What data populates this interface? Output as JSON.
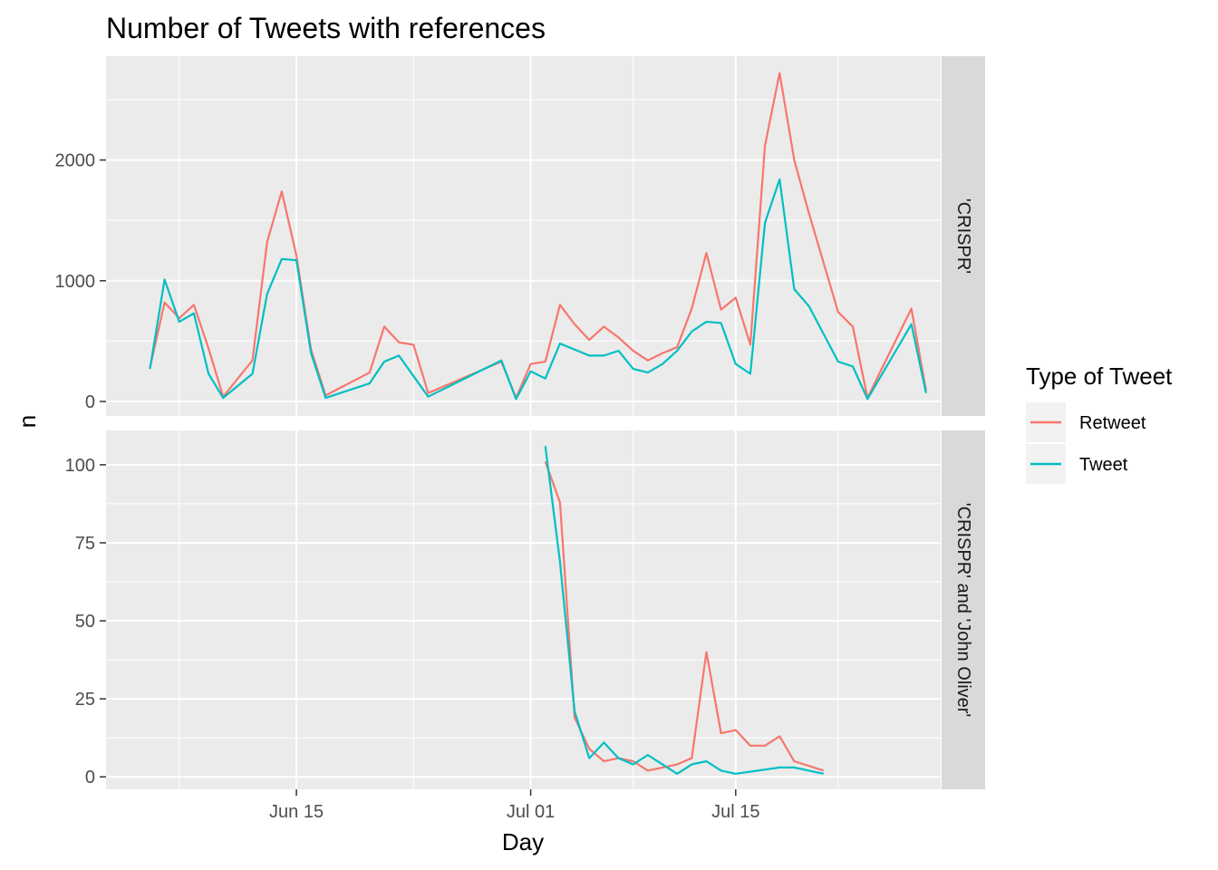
{
  "chart_data": {
    "type": "line",
    "title": "Number of Tweets with references",
    "xlabel": "Day",
    "ylabel": "n",
    "x_ticks": [
      {
        "date": "2015-06-15",
        "label": "Jun 15"
      },
      {
        "date": "2015-07-01",
        "label": "Jul 01"
      },
      {
        "date": "2015-07-15",
        "label": "Jul 15"
      }
    ],
    "xlim": [
      "2015-06-02",
      "2015-07-29"
    ],
    "grid": true,
    "legend": {
      "title": "Type of Tweet",
      "position": "right",
      "entries": [
        {
          "name": "Retweet",
          "color": "#F8766D"
        },
        {
          "name": "Tweet",
          "color": "#00BFC4"
        }
      ]
    },
    "panels": [
      {
        "strip": "'CRISPR'",
        "ylim": [
          -120,
          2860
        ],
        "y_ticks": [
          0,
          1000,
          2000
        ],
        "series": [
          {
            "name": "Retweet",
            "color": "#F8766D",
            "points": [
              [
                "2015-06-05",
                280
              ],
              [
                "2015-06-06",
                820
              ],
              [
                "2015-06-07",
                690
              ],
              [
                "2015-06-08",
                800
              ],
              [
                "2015-06-09",
                440
              ],
              [
                "2015-06-10",
                40
              ],
              [
                "2015-06-12",
                340
              ],
              [
                "2015-06-13",
                1320
              ],
              [
                "2015-06-14",
                1740
              ],
              [
                "2015-06-15",
                1210
              ],
              [
                "2015-06-16",
                430
              ],
              [
                "2015-06-17",
                50
              ],
              [
                "2015-06-20",
                240
              ],
              [
                "2015-06-21",
                620
              ],
              [
                "2015-06-22",
                490
              ],
              [
                "2015-06-23",
                470
              ],
              [
                "2015-06-24",
                70
              ],
              [
                "2015-06-29",
                330
              ],
              [
                "2015-06-30",
                30
              ],
              [
                "2015-07-01",
                310
              ],
              [
                "2015-07-02",
                330
              ],
              [
                "2015-07-03",
                800
              ],
              [
                "2015-07-04",
                640
              ],
              [
                "2015-07-05",
                510
              ],
              [
                "2015-07-06",
                620
              ],
              [
                "2015-07-07",
                530
              ],
              [
                "2015-07-08",
                420
              ],
              [
                "2015-07-09",
                340
              ],
              [
                "2015-07-10",
                400
              ],
              [
                "2015-07-11",
                450
              ],
              [
                "2015-07-12",
                770
              ],
              [
                "2015-07-13",
                1230
              ],
              [
                "2015-07-14",
                760
              ],
              [
                "2015-07-15",
                860
              ],
              [
                "2015-07-16",
                470
              ],
              [
                "2015-07-17",
                2120
              ],
              [
                "2015-07-18",
                2720
              ],
              [
                "2015-07-19",
                2000
              ],
              [
                "2015-07-20",
                1560
              ],
              [
                "2015-07-22",
                740
              ],
              [
                "2015-07-23",
                620
              ],
              [
                "2015-07-24",
                30
              ],
              [
                "2015-07-27",
                770
              ],
              [
                "2015-07-28",
                90
              ]
            ]
          },
          {
            "name": "Tweet",
            "color": "#00BFC4",
            "points": [
              [
                "2015-06-05",
                270
              ],
              [
                "2015-06-06",
                1010
              ],
              [
                "2015-06-07",
                660
              ],
              [
                "2015-06-08",
                730
              ],
              [
                "2015-06-09",
                230
              ],
              [
                "2015-06-10",
                30
              ],
              [
                "2015-06-12",
                230
              ],
              [
                "2015-06-13",
                890
              ],
              [
                "2015-06-14",
                1180
              ],
              [
                "2015-06-15",
                1170
              ],
              [
                "2015-06-16",
                400
              ],
              [
                "2015-06-17",
                30
              ],
              [
                "2015-06-20",
                150
              ],
              [
                "2015-06-21",
                330
              ],
              [
                "2015-06-22",
                380
              ],
              [
                "2015-06-24",
                40
              ],
              [
                "2015-06-29",
                340
              ],
              [
                "2015-06-30",
                20
              ],
              [
                "2015-07-01",
                250
              ],
              [
                "2015-07-02",
                190
              ],
              [
                "2015-07-03",
                480
              ],
              [
                "2015-07-04",
                430
              ],
              [
                "2015-07-05",
                380
              ],
              [
                "2015-07-06",
                380
              ],
              [
                "2015-07-07",
                420
              ],
              [
                "2015-07-08",
                270
              ],
              [
                "2015-07-09",
                240
              ],
              [
                "2015-07-10",
                310
              ],
              [
                "2015-07-11",
                420
              ],
              [
                "2015-07-12",
                580
              ],
              [
                "2015-07-13",
                660
              ],
              [
                "2015-07-14",
                650
              ],
              [
                "2015-07-15",
                310
              ],
              [
                "2015-07-16",
                230
              ],
              [
                "2015-07-17",
                1480
              ],
              [
                "2015-07-18",
                1840
              ],
              [
                "2015-07-19",
                930
              ],
              [
                "2015-07-20",
                790
              ],
              [
                "2015-07-22",
                330
              ],
              [
                "2015-07-23",
                290
              ],
              [
                "2015-07-24",
                20
              ],
              [
                "2015-07-27",
                640
              ],
              [
                "2015-07-28",
                70
              ]
            ]
          }
        ]
      },
      {
        "strip": "'CRISPR' and 'John Oliver'",
        "ylim": [
          -4,
          111
        ],
        "y_ticks": [
          0,
          25,
          50,
          75,
          100
        ],
        "series": [
          {
            "name": "Retweet",
            "color": "#F8766D",
            "points": [
              [
                "2015-07-02",
                101
              ],
              [
                "2015-07-03",
                88
              ],
              [
                "2015-07-04",
                19
              ],
              [
                "2015-07-05",
                9
              ],
              [
                "2015-07-06",
                5
              ],
              [
                "2015-07-07",
                6
              ],
              [
                "2015-07-08",
                5
              ],
              [
                "2015-07-09",
                2
              ],
              [
                "2015-07-10",
                3
              ],
              [
                "2015-07-11",
                4
              ],
              [
                "2015-07-12",
                6
              ],
              [
                "2015-07-13",
                40
              ],
              [
                "2015-07-14",
                14
              ],
              [
                "2015-07-15",
                15
              ],
              [
                "2015-07-16",
                10
              ],
              [
                "2015-07-17",
                10
              ],
              [
                "2015-07-18",
                13
              ],
              [
                "2015-07-19",
                5
              ],
              [
                "2015-07-21",
                2
              ]
            ]
          },
          {
            "name": "Tweet",
            "color": "#00BFC4",
            "points": [
              [
                "2015-07-02",
                106
              ],
              [
                "2015-07-03",
                69
              ],
              [
                "2015-07-04",
                21
              ],
              [
                "2015-07-05",
                6
              ],
              [
                "2015-07-06",
                11
              ],
              [
                "2015-07-07",
                6
              ],
              [
                "2015-07-08",
                4
              ],
              [
                "2015-07-09",
                7
              ],
              [
                "2015-07-10",
                4
              ],
              [
                "2015-07-11",
                1
              ],
              [
                "2015-07-12",
                4
              ],
              [
                "2015-07-13",
                5
              ],
              [
                "2015-07-14",
                2
              ],
              [
                "2015-07-15",
                1
              ],
              [
                "2015-07-18",
                3
              ],
              [
                "2015-07-19",
                3
              ],
              [
                "2015-07-21",
                1
              ]
            ]
          }
        ]
      }
    ]
  }
}
